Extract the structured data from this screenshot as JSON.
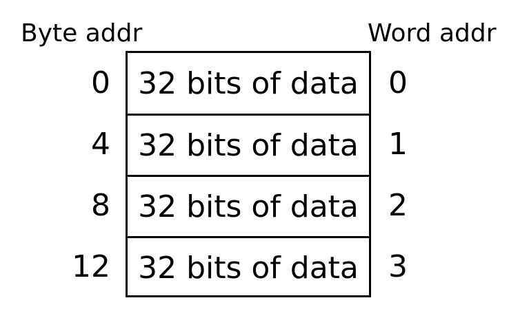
{
  "headers": {
    "byte_addr": "Byte addr",
    "word_addr": "Word addr"
  },
  "rows": [
    {
      "byte_addr": "0",
      "data": "32 bits of data",
      "word_addr": "0"
    },
    {
      "byte_addr": "4",
      "data": "32 bits of data",
      "word_addr": "1"
    },
    {
      "byte_addr": "8",
      "data": "32 bits of data",
      "word_addr": "2"
    },
    {
      "byte_addr": "12",
      "data": "32 bits of data",
      "word_addr": "3"
    }
  ]
}
